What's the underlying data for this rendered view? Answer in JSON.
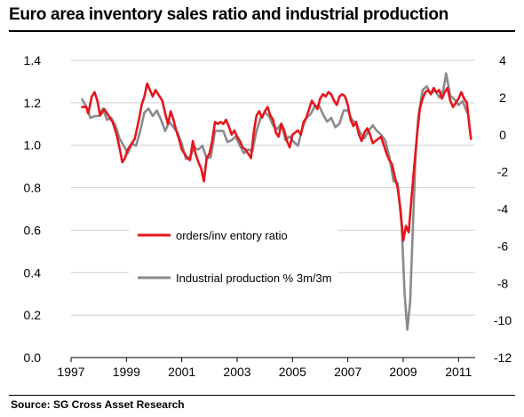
{
  "header": {
    "title": "Euro area inventory sales ratio and industrial production"
  },
  "footer": {
    "source": "Source: SG Cross Asset Research"
  },
  "chart_data": {
    "type": "line",
    "x_range": [
      1997,
      2011.6
    ],
    "x_ticks": [
      "1997",
      "1999",
      "2001",
      "2003",
      "2005",
      "2007",
      "2009",
      "2011"
    ],
    "y_left": {
      "range": [
        0,
        1.4
      ],
      "ticks": [
        "0.0",
        "0.2",
        "0.4",
        "0.6",
        "0.8",
        "1.0",
        "1.2",
        "1.4"
      ]
    },
    "y_right": {
      "range": [
        -12,
        4
      ],
      "ticks": [
        "-12",
        "-10",
        "-8",
        "-6",
        "-4",
        "-2",
        "0",
        "2",
        "4"
      ]
    },
    "grid": "horizontal",
    "legend_position": "center-left",
    "series": [
      {
        "name": "orders/inv entory ratio",
        "axis": "left",
        "color": "#e8141c",
        "points": [
          [
            1997.4,
            1.18
          ],
          [
            1997.55,
            1.18
          ],
          [
            1997.62,
            1.15
          ],
          [
            1997.75,
            1.23
          ],
          [
            1997.85,
            1.25
          ],
          [
            1997.95,
            1.21
          ],
          [
            1998.05,
            1.14
          ],
          [
            1998.2,
            1.17
          ],
          [
            1998.35,
            1.14
          ],
          [
            1998.5,
            1.11
          ],
          [
            1998.65,
            1.05
          ],
          [
            1998.75,
            0.99
          ],
          [
            1998.85,
            0.92
          ],
          [
            1998.95,
            0.94
          ],
          [
            1999.05,
            0.98
          ],
          [
            1999.15,
            1.0
          ],
          [
            1999.3,
            1.03
          ],
          [
            1999.45,
            1.12
          ],
          [
            1999.55,
            1.19
          ],
          [
            1999.65,
            1.23
          ],
          [
            1999.75,
            1.29
          ],
          [
            1999.85,
            1.26
          ],
          [
            1999.95,
            1.23
          ],
          [
            2000.05,
            1.26
          ],
          [
            2000.15,
            1.24
          ],
          [
            2000.3,
            1.21
          ],
          [
            2000.4,
            1.15
          ],
          [
            2000.5,
            1.1
          ],
          [
            2000.6,
            1.16
          ],
          [
            2000.7,
            1.12
          ],
          [
            2000.8,
            1.07
          ],
          [
            2000.9,
            1.03
          ],
          [
            2001.0,
            0.98
          ],
          [
            2001.1,
            0.96
          ],
          [
            2001.2,
            0.94
          ],
          [
            2001.3,
            0.93
          ],
          [
            2001.4,
            1.02
          ],
          [
            2001.5,
            0.96
          ],
          [
            2001.6,
            0.92
          ],
          [
            2001.7,
            0.89
          ],
          [
            2001.8,
            0.83
          ],
          [
            2001.9,
            0.94
          ],
          [
            2002.0,
            0.96
          ],
          [
            2002.1,
            1.02
          ],
          [
            2002.2,
            1.11
          ],
          [
            2002.3,
            1.1
          ],
          [
            2002.4,
            1.11
          ],
          [
            2002.5,
            1.1
          ],
          [
            2002.6,
            1.12
          ],
          [
            2002.7,
            1.09
          ],
          [
            2002.8,
            1.05
          ],
          [
            2002.9,
            1.07
          ],
          [
            2003.0,
            1.04
          ],
          [
            2003.1,
            1.02
          ],
          [
            2003.2,
            0.99
          ],
          [
            2003.3,
            0.98
          ],
          [
            2003.4,
            0.96
          ],
          [
            2003.5,
            0.94
          ],
          [
            2003.6,
            1.06
          ],
          [
            2003.7,
            1.14
          ],
          [
            2003.8,
            1.16
          ],
          [
            2003.9,
            1.13
          ],
          [
            2004.0,
            1.16
          ],
          [
            2004.1,
            1.18
          ],
          [
            2004.2,
            1.14
          ],
          [
            2004.3,
            1.12
          ],
          [
            2004.4,
            1.06
          ],
          [
            2004.5,
            1.04
          ],
          [
            2004.6,
            1.1
          ],
          [
            2004.7,
            1.07
          ],
          [
            2004.8,
            1.02
          ],
          [
            2004.9,
            0.99
          ],
          [
            2005.0,
            1.05
          ],
          [
            2005.1,
            1.06
          ],
          [
            2005.2,
            1.07
          ],
          [
            2005.3,
            1.05
          ],
          [
            2005.4,
            1.11
          ],
          [
            2005.5,
            1.13
          ],
          [
            2005.6,
            1.17
          ],
          [
            2005.7,
            1.21
          ],
          [
            2005.8,
            1.19
          ],
          [
            2005.9,
            1.17
          ],
          [
            2006.0,
            1.22
          ],
          [
            2006.1,
            1.24
          ],
          [
            2006.2,
            1.23
          ],
          [
            2006.3,
            1.25
          ],
          [
            2006.4,
            1.24
          ],
          [
            2006.5,
            1.21
          ],
          [
            2006.6,
            1.19
          ],
          [
            2006.7,
            1.23
          ],
          [
            2006.8,
            1.24
          ],
          [
            2006.9,
            1.23
          ],
          [
            2007.0,
            1.19
          ],
          [
            2007.1,
            1.12
          ],
          [
            2007.2,
            1.09
          ],
          [
            2007.3,
            1.11
          ],
          [
            2007.4,
            1.05
          ],
          [
            2007.5,
            1.02
          ],
          [
            2007.6,
            1.06
          ],
          [
            2007.7,
            1.08
          ],
          [
            2007.8,
            1.05
          ],
          [
            2007.9,
            1.01
          ],
          [
            2008.0,
            1.02
          ],
          [
            2008.1,
            1.03
          ],
          [
            2008.2,
            1.04
          ],
          [
            2008.3,
            1.0
          ],
          [
            2008.4,
            0.96
          ],
          [
            2008.5,
            0.93
          ],
          [
            2008.6,
            0.91
          ],
          [
            2008.7,
            0.85
          ],
          [
            2008.8,
            0.8
          ],
          [
            2008.9,
            0.7
          ],
          [
            2009.0,
            0.55
          ],
          [
            2009.1,
            0.62
          ],
          [
            2009.2,
            0.59
          ],
          [
            2009.3,
            0.75
          ],
          [
            2009.4,
            0.9
          ],
          [
            2009.5,
            1.05
          ],
          [
            2009.6,
            1.17
          ],
          [
            2009.7,
            1.22
          ],
          [
            2009.8,
            1.25
          ],
          [
            2009.9,
            1.26
          ],
          [
            2010.0,
            1.24
          ],
          [
            2010.1,
            1.27
          ],
          [
            2010.2,
            1.25
          ],
          [
            2010.3,
            1.26
          ],
          [
            2010.4,
            1.22
          ],
          [
            2010.5,
            1.25
          ],
          [
            2010.6,
            1.27
          ],
          [
            2010.7,
            1.21
          ],
          [
            2010.8,
            1.18
          ],
          [
            2010.9,
            1.2
          ],
          [
            2011.0,
            1.22
          ],
          [
            2011.1,
            1.25
          ],
          [
            2011.2,
            1.22
          ],
          [
            2011.3,
            1.2
          ],
          [
            2011.4,
            1.08
          ],
          [
            2011.45,
            1.03
          ]
        ]
      },
      {
        "name": "Industrial production % 3m/3m",
        "axis": "right",
        "color": "#8a8a8a",
        "points": [
          [
            1997.4,
            1.9
          ],
          [
            1997.55,
            1.5
          ],
          [
            1997.7,
            0.9
          ],
          [
            1997.85,
            1.0
          ],
          [
            1998.0,
            1.0
          ],
          [
            1998.15,
            1.4
          ],
          [
            1998.3,
            0.8
          ],
          [
            1998.45,
            0.9
          ],
          [
            1998.6,
            0.5
          ],
          [
            1998.75,
            -0.2
          ],
          [
            1998.9,
            -0.6
          ],
          [
            1999.05,
            -1.0
          ],
          [
            1999.2,
            -0.5
          ],
          [
            1999.35,
            -0.6
          ],
          [
            1999.5,
            0.2
          ],
          [
            1999.65,
            1.2
          ],
          [
            1999.8,
            1.4
          ],
          [
            1999.95,
            1.0
          ],
          [
            2000.1,
            1.3
          ],
          [
            2000.25,
            0.8
          ],
          [
            2000.4,
            0.2
          ],
          [
            2000.55,
            0.7
          ],
          [
            2000.7,
            0.4
          ],
          [
            2000.85,
            0.1
          ],
          [
            2001.0,
            -0.5
          ],
          [
            2001.15,
            -1.3
          ],
          [
            2001.3,
            -1.2
          ],
          [
            2001.45,
            -0.7
          ],
          [
            2001.6,
            -0.8
          ],
          [
            2001.75,
            -0.6
          ],
          [
            2001.9,
            -1.3
          ],
          [
            2002.05,
            -1.2
          ],
          [
            2002.2,
            0.2
          ],
          [
            2002.35,
            0.2
          ],
          [
            2002.5,
            0.2
          ],
          [
            2002.65,
            -0.4
          ],
          [
            2002.8,
            -0.3
          ],
          [
            2002.95,
            -0.1
          ],
          [
            2003.1,
            -0.6
          ],
          [
            2003.25,
            -1.0
          ],
          [
            2003.4,
            -0.8
          ],
          [
            2003.55,
            -0.9
          ],
          [
            2003.7,
            0.2
          ],
          [
            2003.85,
            0.9
          ],
          [
            2004.0,
            1.2
          ],
          [
            2004.15,
            1.0
          ],
          [
            2004.3,
            0.5
          ],
          [
            2004.45,
            0.3
          ],
          [
            2004.6,
            0.6
          ],
          [
            2004.75,
            -0.3
          ],
          [
            2004.9,
            -0.1
          ],
          [
            2005.05,
            -0.4
          ],
          [
            2005.2,
            -0.6
          ],
          [
            2005.35,
            0.3
          ],
          [
            2005.5,
            0.9
          ],
          [
            2005.65,
            1.1
          ],
          [
            2005.8,
            1.5
          ],
          [
            2005.95,
            1.6
          ],
          [
            2006.1,
            1.1
          ],
          [
            2006.25,
            0.7
          ],
          [
            2006.4,
            0.9
          ],
          [
            2006.55,
            0.4
          ],
          [
            2006.7,
            0.6
          ],
          [
            2006.85,
            1.3
          ],
          [
            2007.0,
            1.3
          ],
          [
            2007.15,
            0.8
          ],
          [
            2007.3,
            0.6
          ],
          [
            2007.45,
            0.1
          ],
          [
            2007.6,
            -0.2
          ],
          [
            2007.75,
            0.2
          ],
          [
            2007.9,
            0.5
          ],
          [
            2008.05,
            0.2
          ],
          [
            2008.2,
            0.0
          ],
          [
            2008.35,
            -0.3
          ],
          [
            2008.5,
            -1.2
          ],
          [
            2008.65,
            -2.5
          ],
          [
            2008.8,
            -2.6
          ],
          [
            2008.95,
            -5.0
          ],
          [
            2009.05,
            -8.5
          ],
          [
            2009.15,
            -10.5
          ],
          [
            2009.25,
            -9.0
          ],
          [
            2009.35,
            -5.0
          ],
          [
            2009.45,
            -1.0
          ],
          [
            2009.55,
            1.0
          ],
          [
            2009.7,
            2.4
          ],
          [
            2009.85,
            2.6
          ],
          [
            2010.0,
            2.2
          ],
          [
            2010.15,
            2.4
          ],
          [
            2010.3,
            2.0
          ],
          [
            2010.45,
            2.4
          ],
          [
            2010.55,
            3.3
          ],
          [
            2010.7,
            2.1
          ],
          [
            2010.85,
            1.9
          ],
          [
            2011.0,
            1.6
          ],
          [
            2011.15,
            1.8
          ],
          [
            2011.3,
            1.2
          ]
        ]
      }
    ]
  }
}
